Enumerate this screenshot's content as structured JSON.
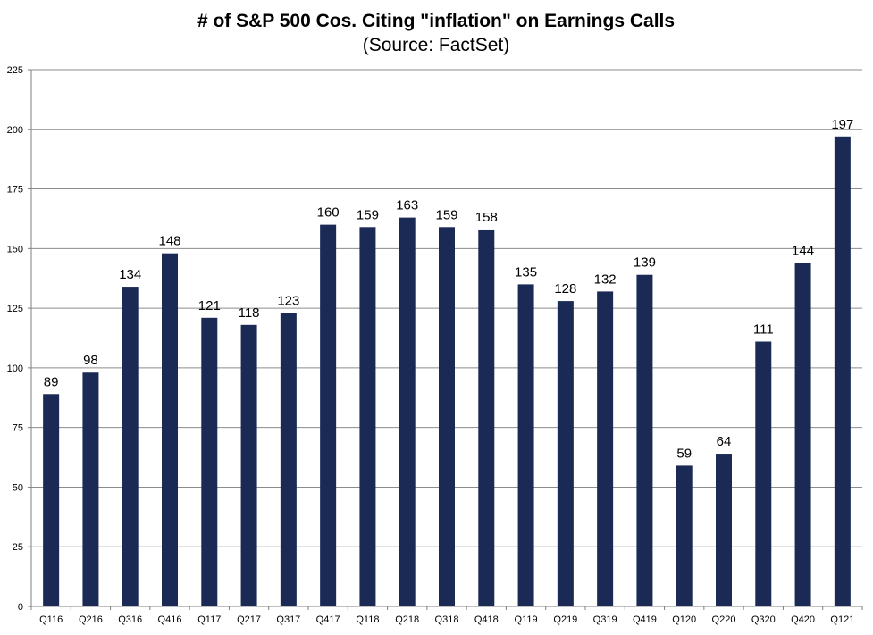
{
  "chart_data": {
    "type": "bar",
    "title": "# of S&P 500 Cos. Citing \"inflation\" on Earnings Calls",
    "subtitle": "(Source: FactSet)",
    "categories": [
      "Q116",
      "Q216",
      "Q316",
      "Q416",
      "Q117",
      "Q217",
      "Q317",
      "Q417",
      "Q118",
      "Q218",
      "Q318",
      "Q418",
      "Q119",
      "Q219",
      "Q319",
      "Q419",
      "Q120",
      "Q220",
      "Q320",
      "Q420",
      "Q121"
    ],
    "values": [
      89,
      98,
      134,
      148,
      121,
      118,
      123,
      160,
      159,
      163,
      159,
      158,
      135,
      128,
      132,
      139,
      59,
      64,
      111,
      144,
      197
    ],
    "ylim": [
      0,
      225
    ],
    "yticks": [
      0,
      25,
      50,
      75,
      100,
      125,
      150,
      175,
      200,
      225
    ],
    "xlabel": "",
    "ylabel": "",
    "grid": true,
    "legend": "none",
    "bar_color": "#1b2a55",
    "grid_color": "#8c8c8c",
    "axis_color": "#7f7f7f"
  }
}
